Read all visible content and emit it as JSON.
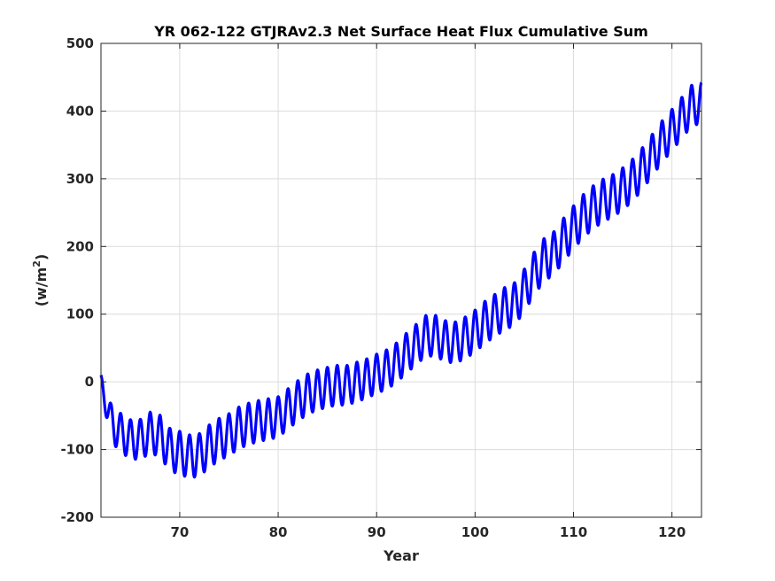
{
  "chart_data": {
    "type": "line",
    "title": "YR 062-122 GTJRAv2.3 Net Surface Heat Flux  Cumulative Sum",
    "xlabel": "Year",
    "ylabel_base": "(w/m",
    "ylabel_sup": "2",
    "ylabel_close": ")",
    "xlim": [
      62,
      123
    ],
    "ylim": [
      -200,
      500
    ],
    "xticks": [
      70,
      80,
      90,
      100,
      110,
      120
    ],
    "yticks": [
      -200,
      -100,
      0,
      100,
      200,
      300,
      400,
      500
    ],
    "grid": true,
    "line_color": "#0000ff",
    "annual_cycle": "seasonal oscillation, one peak per year",
    "series": [
      {
        "values": [
          {
            "x": 62.0,
            "y": 0
          },
          {
            "x": 63.0,
            "y": -60
          },
          {
            "x": 64.0,
            "y": -75
          },
          {
            "x": 65.0,
            "y": -85
          },
          {
            "x": 66.0,
            "y": -85
          },
          {
            "x": 67.0,
            "y": -75
          },
          {
            "x": 68.0,
            "y": -80
          },
          {
            "x": 69.0,
            "y": -100
          },
          {
            "x": 70.0,
            "y": -105
          },
          {
            "x": 71.0,
            "y": -110
          },
          {
            "x": 72.0,
            "y": -108
          },
          {
            "x": 73.0,
            "y": -95
          },
          {
            "x": 74.0,
            "y": -85
          },
          {
            "x": 75.0,
            "y": -78
          },
          {
            "x": 76.0,
            "y": -68
          },
          {
            "x": 77.0,
            "y": -62
          },
          {
            "x": 78.0,
            "y": -58
          },
          {
            "x": 79.0,
            "y": -55
          },
          {
            "x": 80.0,
            "y": -52
          },
          {
            "x": 81.0,
            "y": -40
          },
          {
            "x": 82.0,
            "y": -28
          },
          {
            "x": 83.0,
            "y": -18
          },
          {
            "x": 84.0,
            "y": -12
          },
          {
            "x": 85.0,
            "y": -8
          },
          {
            "x": 86.0,
            "y": -5
          },
          {
            "x": 87.0,
            "y": -5
          },
          {
            "x": 88.0,
            "y": 0
          },
          {
            "x": 89.0,
            "y": 5
          },
          {
            "x": 90.0,
            "y": 12
          },
          {
            "x": 91.0,
            "y": 18
          },
          {
            "x": 92.0,
            "y": 28
          },
          {
            "x": 93.0,
            "y": 42
          },
          {
            "x": 94.0,
            "y": 55
          },
          {
            "x": 95.0,
            "y": 68
          },
          {
            "x": 96.0,
            "y": 68
          },
          {
            "x": 97.0,
            "y": 60
          },
          {
            "x": 98.0,
            "y": 58
          },
          {
            "x": 99.0,
            "y": 65
          },
          {
            "x": 100.0,
            "y": 75
          },
          {
            "x": 101.0,
            "y": 88
          },
          {
            "x": 102.0,
            "y": 98
          },
          {
            "x": 103.0,
            "y": 108
          },
          {
            "x": 104.0,
            "y": 115
          },
          {
            "x": 105.0,
            "y": 135
          },
          {
            "x": 106.0,
            "y": 160
          },
          {
            "x": 107.0,
            "y": 180
          },
          {
            "x": 108.0,
            "y": 190
          },
          {
            "x": 109.0,
            "y": 210
          },
          {
            "x": 110.0,
            "y": 228
          },
          {
            "x": 111.0,
            "y": 245
          },
          {
            "x": 112.0,
            "y": 258
          },
          {
            "x": 113.0,
            "y": 268
          },
          {
            "x": 114.0,
            "y": 275
          },
          {
            "x": 115.0,
            "y": 285
          },
          {
            "x": 116.0,
            "y": 298
          },
          {
            "x": 117.0,
            "y": 315
          },
          {
            "x": 118.0,
            "y": 335
          },
          {
            "x": 119.0,
            "y": 355
          },
          {
            "x": 120.0,
            "y": 372
          },
          {
            "x": 121.0,
            "y": 390
          },
          {
            "x": 122.0,
            "y": 408
          },
          {
            "x": 123.0,
            "y": 412
          }
        ],
        "amplitude": [
          {
            "x": 62.0,
            "a": 10
          },
          {
            "x": 63.0,
            "a": 28
          },
          {
            "x": 70.0,
            "a": 32
          },
          {
            "x": 80.0,
            "a": 30
          },
          {
            "x": 90.0,
            "a": 29
          },
          {
            "x": 100.0,
            "a": 31
          },
          {
            "x": 110.0,
            "a": 32
          },
          {
            "x": 123.0,
            "a": 30
          }
        ]
      }
    ]
  }
}
